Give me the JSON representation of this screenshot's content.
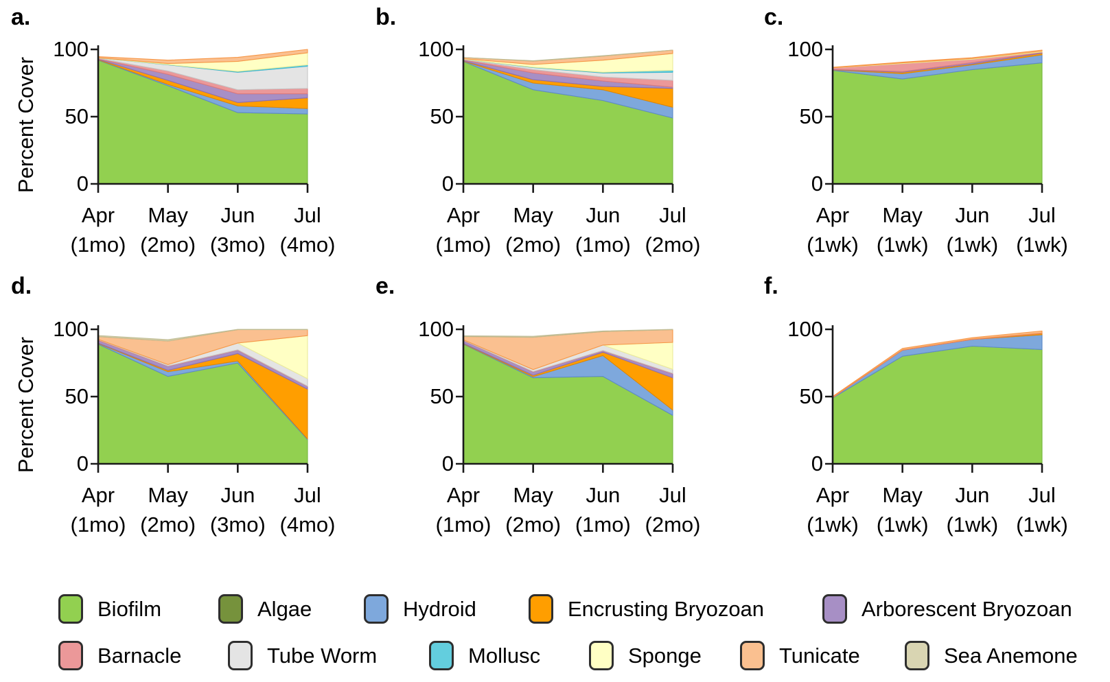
{
  "figure": {
    "background": "#FFFFFF"
  },
  "axis": {
    "y_label": "Percent Cover",
    "y_ticks": [
      0,
      50,
      100
    ],
    "y_min": 0,
    "y_max": 100
  },
  "legend": {
    "entries": [
      {
        "label": "Biofilm",
        "fill": "#92D050",
        "edge": "#76B83E"
      },
      {
        "label": "Algae",
        "fill": "#76923C",
        "edge": "#5C7430"
      },
      {
        "label": "Hydroid",
        "fill": "#7EA8DC",
        "edge": "#5E8AC7"
      },
      {
        "label": "Encrusting Bryozoan",
        "fill": "#FF9E00",
        "edge": "#E08800"
      },
      {
        "label": "Arborescent Bryozoan",
        "fill": "#A78FC5",
        "edge": "#8D6FB0"
      },
      {
        "label": "Barnacle",
        "fill": "#EB9899",
        "edge": "#DC7B7D"
      },
      {
        "label": "Tube Worm",
        "fill": "#E4E4E4",
        "edge": "#C6C6C6"
      },
      {
        "label": "Mollusc",
        "fill": "#63CEDE",
        "edge": "#3FB8CD"
      },
      {
        "label": "Sponge",
        "fill": "#FFFFC4",
        "edge": "#ECEC9A"
      },
      {
        "label": "Tunicate",
        "fill": "#FAC090",
        "edge": "#F79646"
      },
      {
        "label": "Sea Anemone",
        "fill": "#D9D5B2",
        "edge": "#BFBB92"
      }
    ]
  },
  "chart_data": {
    "type": "area",
    "stacked": true,
    "ylim": [
      0,
      100
    ],
    "stack_order": [
      "Biofilm",
      "Algae",
      "Hydroid",
      "Encrusting Bryozoan",
      "Arborescent Bryozoan",
      "Barnacle",
      "Tube Worm",
      "Mollusc",
      "Sponge",
      "Tunicate",
      "Sea Anemone"
    ],
    "panels": [
      {
        "letter": "a.",
        "categories": [
          [
            "Apr",
            "(1mo)"
          ],
          [
            "May",
            "(2mo)"
          ],
          [
            "Jun",
            "(3mo)"
          ],
          [
            "Jul",
            "(4mo)"
          ]
        ],
        "series": {
          "Biofilm": [
            92,
            73,
            53,
            52
          ],
          "Hydroid": [
            0.3,
            1,
            5,
            4
          ],
          "Encrusting Bryozoan": [
            0.3,
            3,
            2.5,
            8
          ],
          "Arborescent Bryozoan": [
            0.3,
            4.5,
            6.5,
            3
          ],
          "Barnacle": [
            0.4,
            2.5,
            3,
            4
          ],
          "Tube Worm": [
            0.3,
            4.5,
            13,
            16.5
          ],
          "Mollusc": [
            0,
            0.2,
            0.6,
            1
          ],
          "Sponge": [
            0.2,
            0.8,
            7.5,
            9
          ],
          "Tunicate": [
            0.8,
            2.5,
            3,
            2.5
          ]
        }
      },
      {
        "letter": "b.",
        "categories": [
          [
            "Apr",
            "(1mo)"
          ],
          [
            "May",
            "(2mo)"
          ],
          [
            "Jun",
            "(1mo)"
          ],
          [
            "Jul",
            "(2mo)"
          ]
        ],
        "series": {
          "Biofilm": [
            91,
            70,
            62,
            49
          ],
          "Hydroid": [
            0.3,
            5,
            8,
            8
          ],
          "Encrusting Bryozoan": [
            0.3,
            2.5,
            2.5,
            14
          ],
          "Arborescent Bryozoan": [
            0.5,
            5,
            4,
            1
          ],
          "Barnacle": [
            0.4,
            2.5,
            3,
            5
          ],
          "Tube Worm": [
            0.3,
            1.5,
            3,
            6
          ],
          "Mollusc": [
            0,
            0.3,
            0.5,
            1.5
          ],
          "Sponge": [
            0.3,
            2,
            9,
            12.5
          ],
          "Tunicate": [
            0.9,
            2.5,
            3,
            2.5
          ],
          "Sea Anemone": [
            0,
            0.3,
            0.3,
            0
          ]
        }
      },
      {
        "letter": "c.",
        "categories": [
          [
            "Apr",
            "(1wk)"
          ],
          [
            "May",
            "(1wk)"
          ],
          [
            "Jun",
            "(1wk)"
          ],
          [
            "Jul",
            "(1wk)"
          ]
        ],
        "series": {
          "Biofilm": [
            84.5,
            78,
            85,
            90
          ],
          "Hydroid": [
            0.3,
            4,
            3.5,
            6
          ],
          "Encrusting Bryozoan": [
            0.2,
            1,
            0.7,
            1.2
          ],
          "Arborescent Bryozoan": [
            0.2,
            0.5,
            1,
            0.6
          ],
          "Barnacle": [
            1,
            6,
            2.5,
            0.3
          ],
          "Sponge": [
            0.2,
            0.5,
            0.5,
            0.6
          ],
          "Tunicate": [
            0.3,
            0.5,
            0.7,
            0.8
          ]
        }
      },
      {
        "letter": "d.",
        "categories": [
          [
            "Apr",
            "(1mo)"
          ],
          [
            "May",
            "(2mo)"
          ],
          [
            "Jun",
            "(3mo)"
          ],
          [
            "Jul",
            "(4mo)"
          ]
        ],
        "series": {
          "Biofilm": [
            89,
            65,
            75,
            18
          ],
          "Hydroid": [
            0.5,
            3.5,
            1.5,
            0.5
          ],
          "Encrusting Bryozoan": [
            0.3,
            1,
            5.5,
            37
          ],
          "Arborescent Bryozoan": [
            2,
            3,
            2.5,
            2
          ],
          "Barnacle": [
            0.5,
            0.3,
            0.3,
            0.3
          ],
          "Tube Worm": [
            0.3,
            1,
            5,
            5.5
          ],
          "Sponge": [
            0,
            0,
            0,
            32
          ],
          "Tunicate": [
            2,
            17.5,
            10,
            4.5
          ],
          "Sea Anemone": [
            0.8,
            1,
            0.5,
            0.3
          ]
        }
      },
      {
        "letter": "e.",
        "categories": [
          [
            "Apr",
            "(1mo)"
          ],
          [
            "May",
            "(2mo)"
          ],
          [
            "Jun",
            "(1mo)"
          ],
          [
            "Jul",
            "(2mo)"
          ]
        ],
        "series": {
          "Biofilm": [
            89,
            64,
            65,
            36
          ],
          "Hydroid": [
            0.3,
            0.8,
            15.5,
            4
          ],
          "Encrusting Bryozoan": [
            0.3,
            1,
            2.5,
            24
          ],
          "Arborescent Bryozoan": [
            2,
            2.5,
            1,
            3
          ],
          "Barnacle": [
            0.3,
            0.3,
            0.3,
            0.3
          ],
          "Tube Worm": [
            0.3,
            1.5,
            4,
            3
          ],
          "Sponge": [
            0,
            0,
            0,
            20
          ],
          "Tunicate": [
            2.5,
            24,
            10,
            9.5
          ],
          "Sea Anemone": [
            0.5,
            0.7,
            0.5,
            0.3
          ]
        }
      },
      {
        "letter": "f.",
        "categories": [
          [
            "Apr",
            "(1wk)"
          ],
          [
            "May",
            "(1wk)"
          ],
          [
            "Jun",
            "(1wk)"
          ],
          [
            "Jul",
            "(1wk)"
          ]
        ],
        "series": {
          "Biofilm": [
            49,
            80,
            87.5,
            85
          ],
          "Hydroid": [
            0.2,
            4.5,
            5,
            11
          ],
          "Encrusting Bryozoan": [
            0,
            0,
            0,
            1
          ],
          "Barnacle": [
            0.4,
            0.3,
            0.3,
            0.3
          ],
          "Tunicate": [
            0.5,
            1,
            1,
            1.5
          ]
        }
      }
    ]
  }
}
